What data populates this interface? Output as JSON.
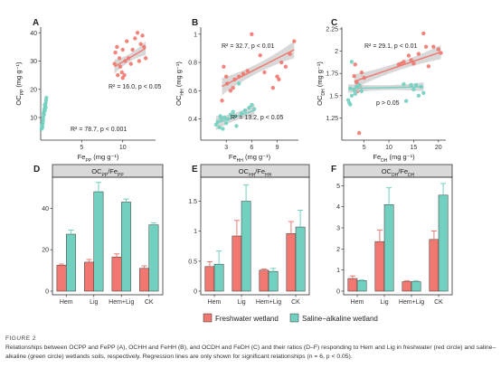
{
  "colors": {
    "freshwater": "#F07870",
    "saline": "#72D0C0",
    "ribbon": "#C8C8C8",
    "strip": "#D9D9D9",
    "ink": "#222222"
  },
  "scatter_panels": [
    {
      "letter": "A",
      "xlabel": "Fe",
      "xlabel_sub": "PP",
      "xlabel_unit": " (mg g⁻¹)",
      "ylabel": "OC",
      "ylabel_sub": "PP",
      "ylabel_unit": " (mg g⁻¹)",
      "ann_fresh": {
        "text": "R² = 16.0, p < 0.05"
      },
      "ann_saline": {
        "text": "R² = 78.7, p < 0.001"
      }
    },
    {
      "letter": "B",
      "xlabel": "Fe",
      "xlabel_sub": "HH",
      "xlabel_unit": " (mg g⁻¹)",
      "ylabel": "OC",
      "ylabel_sub": "HH",
      "ylabel_unit": " (mg g⁻¹)",
      "ann_fresh": {
        "text": "R² = 32.7, p < 0.01"
      },
      "ann_saline": {
        "text": "R² = 13.2, p < 0.05"
      }
    },
    {
      "letter": "C",
      "xlabel": "Fe",
      "xlabel_sub": "DH",
      "xlabel_unit": " (mg g⁻¹)",
      "ylabel": "OC",
      "ylabel_sub": "DH",
      "ylabel_unit": " (mg g⁻¹)",
      "ann_fresh": {
        "text": "R² = 29.1, p < 0.01"
      },
      "ann_saline": {
        "text": "p > 0.05"
      }
    }
  ],
  "bar_panels": [
    {
      "letter": "D",
      "strip_main": "OC",
      "strip_sub1": "PP",
      "strip_mid": "/Fe",
      "strip_sub2": "PP"
    },
    {
      "letter": "E",
      "strip_main": "OC",
      "strip_sub1": "HH",
      "strip_mid": "/Fe",
      "strip_sub2": "HH"
    },
    {
      "letter": "F",
      "strip_main": "OC",
      "strip_sub1": "DH",
      "strip_mid": "/Fe",
      "strip_sub2": "DH"
    }
  ],
  "legend": {
    "freshwater": "Freshwater wetland",
    "saline": "Saline−alkaline wetland"
  },
  "caption": {
    "label": "FIGURE 2",
    "text": "Relationships between OCPP and FePP (A), OCHH and FeHH (B), and OCDH and FeDH (C) and their ratios (D–F) responding to Hem and Lig in freshwater (red circle) and saline–alkaline (green circle) wetlands soils, respectively. Regression lines are only shown for significant relationships (n = 6, p < 0.05)."
  },
  "chart_data": [
    {
      "type": "scatter",
      "panel": "A",
      "xlim": [
        0,
        14
      ],
      "ylim": [
        2,
        42
      ],
      "xticks": [
        5,
        10
      ],
      "yticks": [
        10,
        20,
        30,
        40
      ],
      "series": [
        {
          "group": "freshwater",
          "points": [
            [
              9.0,
              29
            ],
            [
              9.1,
              33
            ],
            [
              9.3,
              35
            ],
            [
              9.4,
              25
            ],
            [
              9.6,
              31
            ],
            [
              9.7,
              28
            ],
            [
              9.9,
              26
            ],
            [
              10.0,
              24
            ],
            [
              10.0,
              34
            ],
            [
              10.2,
              25
            ],
            [
              10.3,
              30
            ],
            [
              10.5,
              37
            ],
            [
              10.7,
              31
            ],
            [
              11.0,
              29
            ],
            [
              11.2,
              34
            ],
            [
              11.5,
              38
            ],
            [
              11.8,
              40
            ],
            [
              12.0,
              30
            ],
            [
              12.2,
              36
            ],
            [
              12.4,
              39
            ],
            [
              12.6,
              35
            ],
            [
              12.8,
              31
            ]
          ],
          "fit": {
            "x": [
              9.0,
              12.8
            ],
            "y": [
              28.0,
              34.5
            ],
            "band": 2.5
          }
        },
        {
          "group": "saline",
          "points": [
            [
              0.1,
              6
            ],
            [
              0.15,
              7
            ],
            [
              0.2,
              6.5
            ],
            [
              0.25,
              8
            ],
            [
              0.3,
              9
            ],
            [
              0.3,
              10
            ],
            [
              0.4,
              11
            ],
            [
              0.4,
              12
            ],
            [
              0.45,
              13
            ],
            [
              0.5,
              12.5
            ],
            [
              0.55,
              14
            ],
            [
              0.6,
              15
            ],
            [
              0.6,
              13.5
            ],
            [
              0.65,
              16
            ],
            [
              0.7,
              17
            ],
            [
              0.2,
              7.5
            ],
            [
              0.35,
              11.5
            ],
            [
              0.5,
              14.5
            ]
          ],
          "fit": {
            "x": [
              0.1,
              0.7
            ],
            "y": [
              6,
              16.5
            ],
            "band": 0.8
          }
        }
      ]
    },
    {
      "type": "scatter",
      "panel": "B",
      "xlim": [
        0,
        11.5
      ],
      "ylim": [
        0.25,
        1.05
      ],
      "xticks": [
        3,
        6,
        9
      ],
      "yticks": [
        0.4,
        0.6,
        0.8,
        1.0
      ],
      "series": [
        {
          "group": "freshwater",
          "points": [
            [
              2.5,
              0.53
            ],
            [
              2.7,
              0.77
            ],
            [
              3.0,
              0.7
            ],
            [
              3.1,
              0.65
            ],
            [
              3.5,
              0.6
            ],
            [
              3.8,
              0.62
            ],
            [
              4.0,
              0.68
            ],
            [
              4.5,
              0.7
            ],
            [
              5.0,
              0.72
            ],
            [
              5.5,
              0.74
            ],
            [
              6.0,
              1.0
            ],
            [
              7.0,
              0.85
            ],
            [
              7.5,
              0.73
            ],
            [
              8.5,
              0.62
            ],
            [
              9.0,
              0.7
            ],
            [
              9.5,
              0.8
            ],
            [
              10.0,
              0.77
            ],
            [
              10.5,
              0.86
            ],
            [
              11.0,
              0.95
            ],
            [
              9.2,
              0.68
            ]
          ],
          "fit": {
            "x": [
              2.5,
              11.0
            ],
            "y": [
              0.63,
              0.89
            ],
            "band": 0.06
          }
        },
        {
          "group": "saline",
          "points": [
            [
              1.8,
              0.36
            ],
            [
              2.0,
              0.38
            ],
            [
              2.2,
              0.34
            ],
            [
              2.4,
              0.4
            ],
            [
              2.6,
              0.33
            ],
            [
              2.8,
              0.41
            ],
            [
              3.0,
              0.37
            ],
            [
              3.2,
              0.4
            ],
            [
              3.5,
              0.43
            ],
            [
              3.8,
              0.45
            ],
            [
              4.0,
              0.42
            ],
            [
              4.2,
              0.35
            ],
            [
              4.8,
              0.44
            ],
            [
              5.2,
              0.46
            ],
            [
              5.7,
              0.48
            ],
            [
              6.0,
              0.5
            ],
            [
              6.3,
              0.47
            ],
            [
              4.5,
              0.65
            ],
            [
              2.3,
              0.42
            ]
          ],
          "fit": {
            "x": [
              1.8,
              6.3
            ],
            "y": [
              0.37,
              0.46
            ],
            "band": 0.05
          }
        }
      ]
    },
    {
      "type": "scatter",
      "panel": "C",
      "xlim": [
        0.5,
        21.5
      ],
      "ylim": [
        1.0,
        2.27
      ],
      "xticks": [
        5,
        10,
        15,
        20
      ],
      "yticks": [
        1.25,
        1.5,
        1.75,
        2.0,
        2.25
      ],
      "series": [
        {
          "group": "freshwater",
          "points": [
            [
              3.0,
              1.72
            ],
            [
              3.2,
              1.85
            ],
            [
              3.5,
              1.65
            ],
            [
              3.7,
              1.55
            ],
            [
              4.0,
              1.08
            ],
            [
              4.2,
              1.6
            ],
            [
              4.5,
              1.76
            ],
            [
              5.0,
              1.7
            ],
            [
              12.0,
              1.85
            ],
            [
              12.5,
              1.86
            ],
            [
              13.0,
              1.88
            ],
            [
              14.0,
              1.95
            ],
            [
              14.5,
              1.9
            ],
            [
              15.0,
              1.86
            ],
            [
              16.0,
              1.97
            ],
            [
              17.0,
              2.2
            ],
            [
              17.5,
              2.05
            ],
            [
              18.0,
              1.83
            ],
            [
              19.0,
              2.05
            ],
            [
              20.0,
              2.02
            ],
            [
              20.5,
              1.98
            ]
          ],
          "fit": {
            "x": [
              3.0,
              20.5
            ],
            "y": [
              1.66,
              1.99
            ],
            "band": 0.08
          }
        },
        {
          "group": "saline",
          "points": [
            [
              1.8,
              1.45
            ],
            [
              2.0,
              1.42
            ],
            [
              2.2,
              1.58
            ],
            [
              2.5,
              1.5
            ],
            [
              2.5,
              1.88
            ],
            [
              3.0,
              1.56
            ],
            [
              3.5,
              1.6
            ],
            [
              4.0,
              1.62
            ],
            [
              4.5,
              1.55
            ],
            [
              13.0,
              1.63
            ],
            [
              13.5,
              1.44
            ],
            [
              14.5,
              1.62
            ],
            [
              15.0,
              1.57
            ],
            [
              15.5,
              1.62
            ],
            [
              16.0,
              1.5
            ],
            [
              16.5,
              1.6
            ],
            [
              17.0,
              1.53
            ],
            [
              2.2,
              1.4
            ],
            [
              3.2,
              1.52
            ]
          ],
          "fit": {
            "x": [
              1.8,
              17.0
            ],
            "y": [
              1.58,
              1.6
            ],
            "band": 0.05
          }
        }
      ]
    },
    {
      "type": "bar",
      "panel": "D",
      "categories": [
        "Hem",
        "Lig",
        "Hem+Lig",
        "CK"
      ],
      "ylim": [
        0,
        55
      ],
      "yticks": [
        0,
        20,
        40
      ],
      "series": [
        {
          "name": "Freshwater wetland",
          "group": "freshwater",
          "values": [
            12.5,
            14.0,
            16.5,
            11.0
          ],
          "errors": [
            0.6,
            1.3,
            1.5,
            1.2
          ]
        },
        {
          "name": "Saline−alkaline wetland",
          "group": "saline",
          "values": [
            27.5,
            48.0,
            43.0,
            32.0
          ],
          "errors": [
            2.0,
            4.5,
            1.5,
            1.0
          ]
        }
      ]
    },
    {
      "type": "bar",
      "panel": "E",
      "categories": [
        "Hem",
        "Lig",
        "Hem+Lig",
        "CK"
      ],
      "ylim": [
        0,
        1.9
      ],
      "yticks": [
        0.0,
        0.5,
        1.0,
        1.5
      ],
      "series": [
        {
          "name": "Freshwater wetland",
          "group": "freshwater",
          "values": [
            0.41,
            0.92,
            0.35,
            0.96
          ],
          "errors": [
            0.08,
            0.26,
            0.02,
            0.2
          ]
        },
        {
          "name": "Saline−alkaline wetland",
          "group": "saline",
          "values": [
            0.45,
            1.5,
            0.33,
            1.07
          ],
          "errors": [
            0.22,
            0.27,
            0.05,
            0.28
          ]
        }
      ]
    },
    {
      "type": "bar",
      "panel": "F",
      "categories": [
        "Hem",
        "Lig",
        "Hem+Lig",
        "CK"
      ],
      "ylim": [
        0,
        5.4
      ],
      "yticks": [
        0,
        1,
        2,
        3,
        4,
        5
      ],
      "series": [
        {
          "name": "Freshwater wetland",
          "group": "freshwater",
          "values": [
            0.6,
            2.35,
            0.45,
            2.45
          ],
          "errors": [
            0.12,
            0.55,
            0.05,
            0.4
          ]
        },
        {
          "name": "Saline−alkaline wetland",
          "group": "saline",
          "values": [
            0.5,
            4.1,
            0.45,
            4.55
          ],
          "errors": [
            0.03,
            0.8,
            0.05,
            0.55
          ]
        }
      ]
    }
  ]
}
